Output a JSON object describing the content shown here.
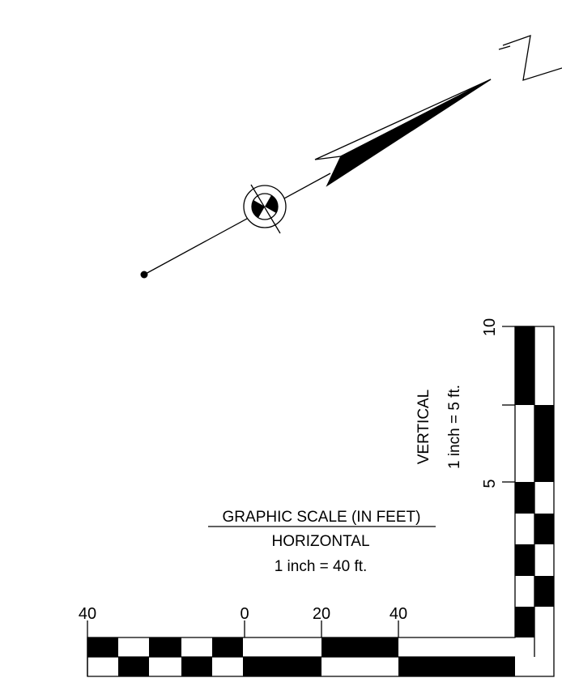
{
  "north_arrow": {
    "label": "N"
  },
  "graphic_scale": {
    "title": "GRAPHIC SCALE (IN FEET)",
    "horizontal": {
      "heading": "HORIZONTAL",
      "ratio": "1 inch = 40 ft.",
      "tick_labels": [
        "40",
        "0",
        "20",
        "40"
      ]
    },
    "vertical": {
      "heading": "VERTICAL",
      "ratio": "1 inch = 5 ft.",
      "tick_labels": [
        "10",
        "5"
      ]
    }
  },
  "colors": {
    "ink": "#000000",
    "paper": "#ffffff"
  }
}
